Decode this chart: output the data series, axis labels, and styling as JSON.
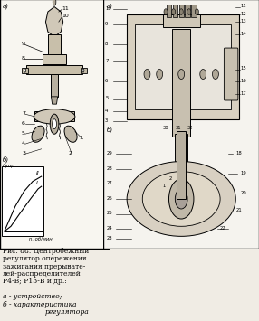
{
  "background_color": "#f0ece4",
  "border_color": "#000000",
  "title_text": "",
  "caption_line1": "Рис. 88. Центробежный",
  "caption_line2": "регулятор опережения",
  "caption_line3": "зажигания прерывате-",
  "caption_line4": "лей-распределителей",
  "caption_line5": "Р4-В; Р13-В и др.:",
  "caption_line6": "",
  "caption_line7": "а - устройство;",
  "caption_line8": "б - характеристика",
  "caption_line9": "регулятора",
  "left_panel_bg": "#ffffff",
  "right_panel_bg": "#f5f5f0",
  "figsize": [
    2.86,
    3.63
  ],
  "dpi": 100
}
